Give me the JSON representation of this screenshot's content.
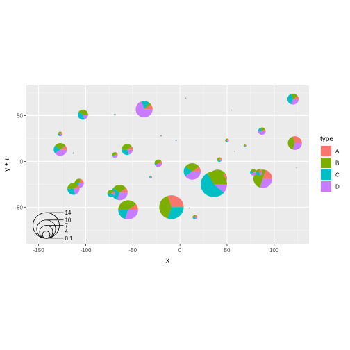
{
  "chart_data": {
    "type": "scatter",
    "subtype": "scatterpie",
    "xlabel": "x",
    "ylabel": "y + r",
    "xlim": [
      -163,
      137
    ],
    "ylim": [
      -90,
      83
    ],
    "x_ticks": [
      -150,
      -100,
      -50,
      0,
      50,
      100
    ],
    "x_tick_labels": [
      "-150",
      "-100",
      "-50",
      "0",
      "50",
      "100"
    ],
    "y_ticks": [
      -50,
      0,
      50
    ],
    "y_tick_labels": [
      "-50",
      "0",
      "50"
    ],
    "grid": true,
    "legend": {
      "title": "type",
      "position": "right",
      "entries": [
        {
          "label": "A",
          "color": "#F8766D"
        },
        {
          "label": "B",
          "color": "#7CAE00"
        },
        {
          "label": "C",
          "color": "#00BFC4"
        },
        {
          "label": "D",
          "color": "#C77CFF"
        }
      ]
    },
    "size_legend": {
      "labels": [
        "14",
        "10",
        "7",
        "4",
        "0.1"
      ],
      "radii": [
        14,
        10,
        7,
        4,
        0.1
      ],
      "x": -142,
      "y_base": -84
    },
    "pies": [
      {
        "x": -38,
        "y": 57,
        "r": 9,
        "values": [
          2,
          1,
          3,
          14
        ]
      },
      {
        "x": 120,
        "y": 68,
        "r": 6,
        "values": [
          1,
          2,
          4,
          3
        ]
      },
      {
        "x": -103,
        "y": 51,
        "r": 5.5,
        "values": [
          0,
          4,
          4,
          2
        ]
      },
      {
        "x": 87,
        "y": 33,
        "r": 4,
        "values": [
          1,
          2,
          2,
          5
        ]
      },
      {
        "x": -127,
        "y": 30,
        "r": 2.5,
        "values": [
          2,
          3,
          2,
          3
        ]
      },
      {
        "x": 122,
        "y": 20,
        "r": 7.5,
        "values": [
          3,
          4,
          0,
          3
        ]
      },
      {
        "x": -127,
        "y": 13,
        "r": 7,
        "values": [
          1,
          3,
          2,
          4
        ]
      },
      {
        "x": -56,
        "y": 13,
        "r": 6,
        "values": [
          1,
          4,
          3,
          2
        ]
      },
      {
        "x": -69,
        "y": 7,
        "r": 3,
        "values": [
          1,
          4,
          1,
          4
        ]
      },
      {
        "x": -23,
        "y": -2,
        "r": 4,
        "values": [
          1,
          4,
          1,
          4
        ]
      },
      {
        "x": 13,
        "y": -11,
        "r": 9,
        "values": [
          1,
          3,
          2,
          4
        ]
      },
      {
        "x": 40,
        "y": -19,
        "r": 10,
        "values": [
          1,
          3,
          2,
          4
        ]
      },
      {
        "x": 36,
        "y": -25,
        "r": 14,
        "values": [
          0,
          3,
          5,
          1
        ]
      },
      {
        "x": 88,
        "y": -19,
        "r": 10,
        "values": [
          2,
          5,
          0,
          3
        ]
      },
      {
        "x": 78,
        "y": -12,
        "r": 3.5,
        "values": [
          1,
          3,
          2,
          4
        ]
      },
      {
        "x": 84,
        "y": -12,
        "r": 3.5,
        "values": [
          2,
          3,
          3,
          2
        ]
      },
      {
        "x": -107,
        "y": -24,
        "r": 5,
        "values": [
          2,
          3,
          2,
          3
        ]
      },
      {
        "x": -113,
        "y": -30,
        "r": 6.5,
        "values": [
          1,
          4,
          3,
          2
        ]
      },
      {
        "x": -64,
        "y": -34,
        "r": 8.5,
        "values": [
          1,
          3,
          3,
          3
        ]
      },
      {
        "x": -73,
        "y": -35,
        "r": 4,
        "values": [
          1,
          4,
          4,
          1
        ]
      },
      {
        "x": -55,
        "y": -53,
        "r": 10.5,
        "values": [
          1,
          4,
          2,
          3
        ]
      },
      {
        "x": -9,
        "y": -50,
        "r": 13,
        "values": [
          3,
          4,
          3,
          0
        ]
      },
      {
        "x": 16,
        "y": -61,
        "r": 2.5,
        "values": [
          2,
          3,
          3,
          2
        ]
      },
      {
        "x": 50,
        "y": 23,
        "r": 2,
        "values": [
          2,
          4,
          2,
          2
        ]
      },
      {
        "x": 42,
        "y": 2,
        "r": 2.5,
        "values": [
          2,
          4,
          2,
          2
        ]
      },
      {
        "x": 69,
        "y": 17,
        "r": 1.5,
        "values": [
          2,
          4,
          2,
          2
        ]
      },
      {
        "x": -69,
        "y": 51,
        "r": 1,
        "values": [
          1,
          2,
          3,
          4
        ]
      },
      {
        "x": -31,
        "y": -17,
        "r": 1.5,
        "values": [
          1,
          2,
          3,
          4
        ]
      },
      {
        "x": -113,
        "y": 9,
        "r": 0.8,
        "values": [
          1,
          2,
          3,
          4
        ]
      },
      {
        "x": 6,
        "y": 69,
        "r": 0.7,
        "values": [
          1,
          2,
          3,
          4
        ]
      },
      {
        "x": 55,
        "y": 56,
        "r": 0.5,
        "values": [
          1,
          2,
          3,
          4
        ]
      },
      {
        "x": -20,
        "y": 28,
        "r": 0.8,
        "values": [
          1,
          2,
          3,
          4
        ]
      },
      {
        "x": -4,
        "y": 23,
        "r": 0.8,
        "values": [
          1,
          2,
          3,
          4
        ]
      },
      {
        "x": 124,
        "y": -7,
        "r": 0.6,
        "values": [
          1,
          2,
          3,
          4
        ]
      },
      {
        "x": 10,
        "y": -51,
        "r": 0.6,
        "values": [
          1,
          2,
          3,
          4
        ]
      },
      {
        "x": 58,
        "y": 11,
        "r": 0.5,
        "values": [
          1,
          2,
          3,
          4
        ]
      }
    ]
  }
}
